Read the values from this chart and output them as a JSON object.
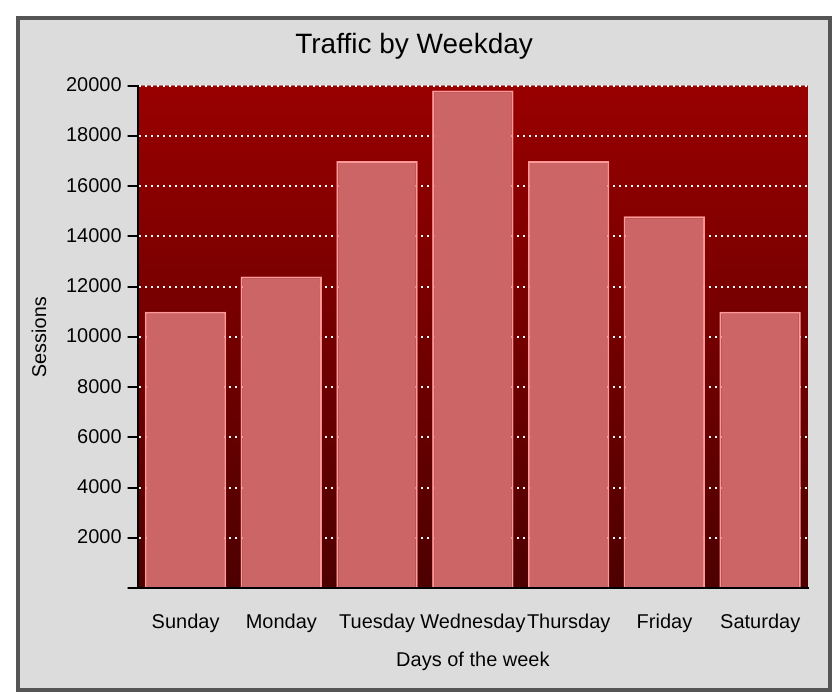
{
  "chart_data": {
    "type": "bar",
    "title": "Traffic by Weekday",
    "xlabel": "Days of the week",
    "ylabel": "Sessions",
    "categories": [
      "Sunday",
      "Monday",
      "Tuesday",
      "Wednesday",
      "Thursday",
      "Friday",
      "Saturday"
    ],
    "values": [
      11000,
      12400,
      17000,
      19800,
      17000,
      14800,
      11000
    ],
    "color": "#cc6666",
    "ylim": [
      0,
      20000
    ],
    "yticks": [
      {
        "value": 0,
        "label": null
      },
      2000,
      4000,
      6000,
      8000,
      10000,
      12000,
      14000,
      16000,
      18000,
      20000
    ],
    "grid": "y",
    "legend": false
  }
}
